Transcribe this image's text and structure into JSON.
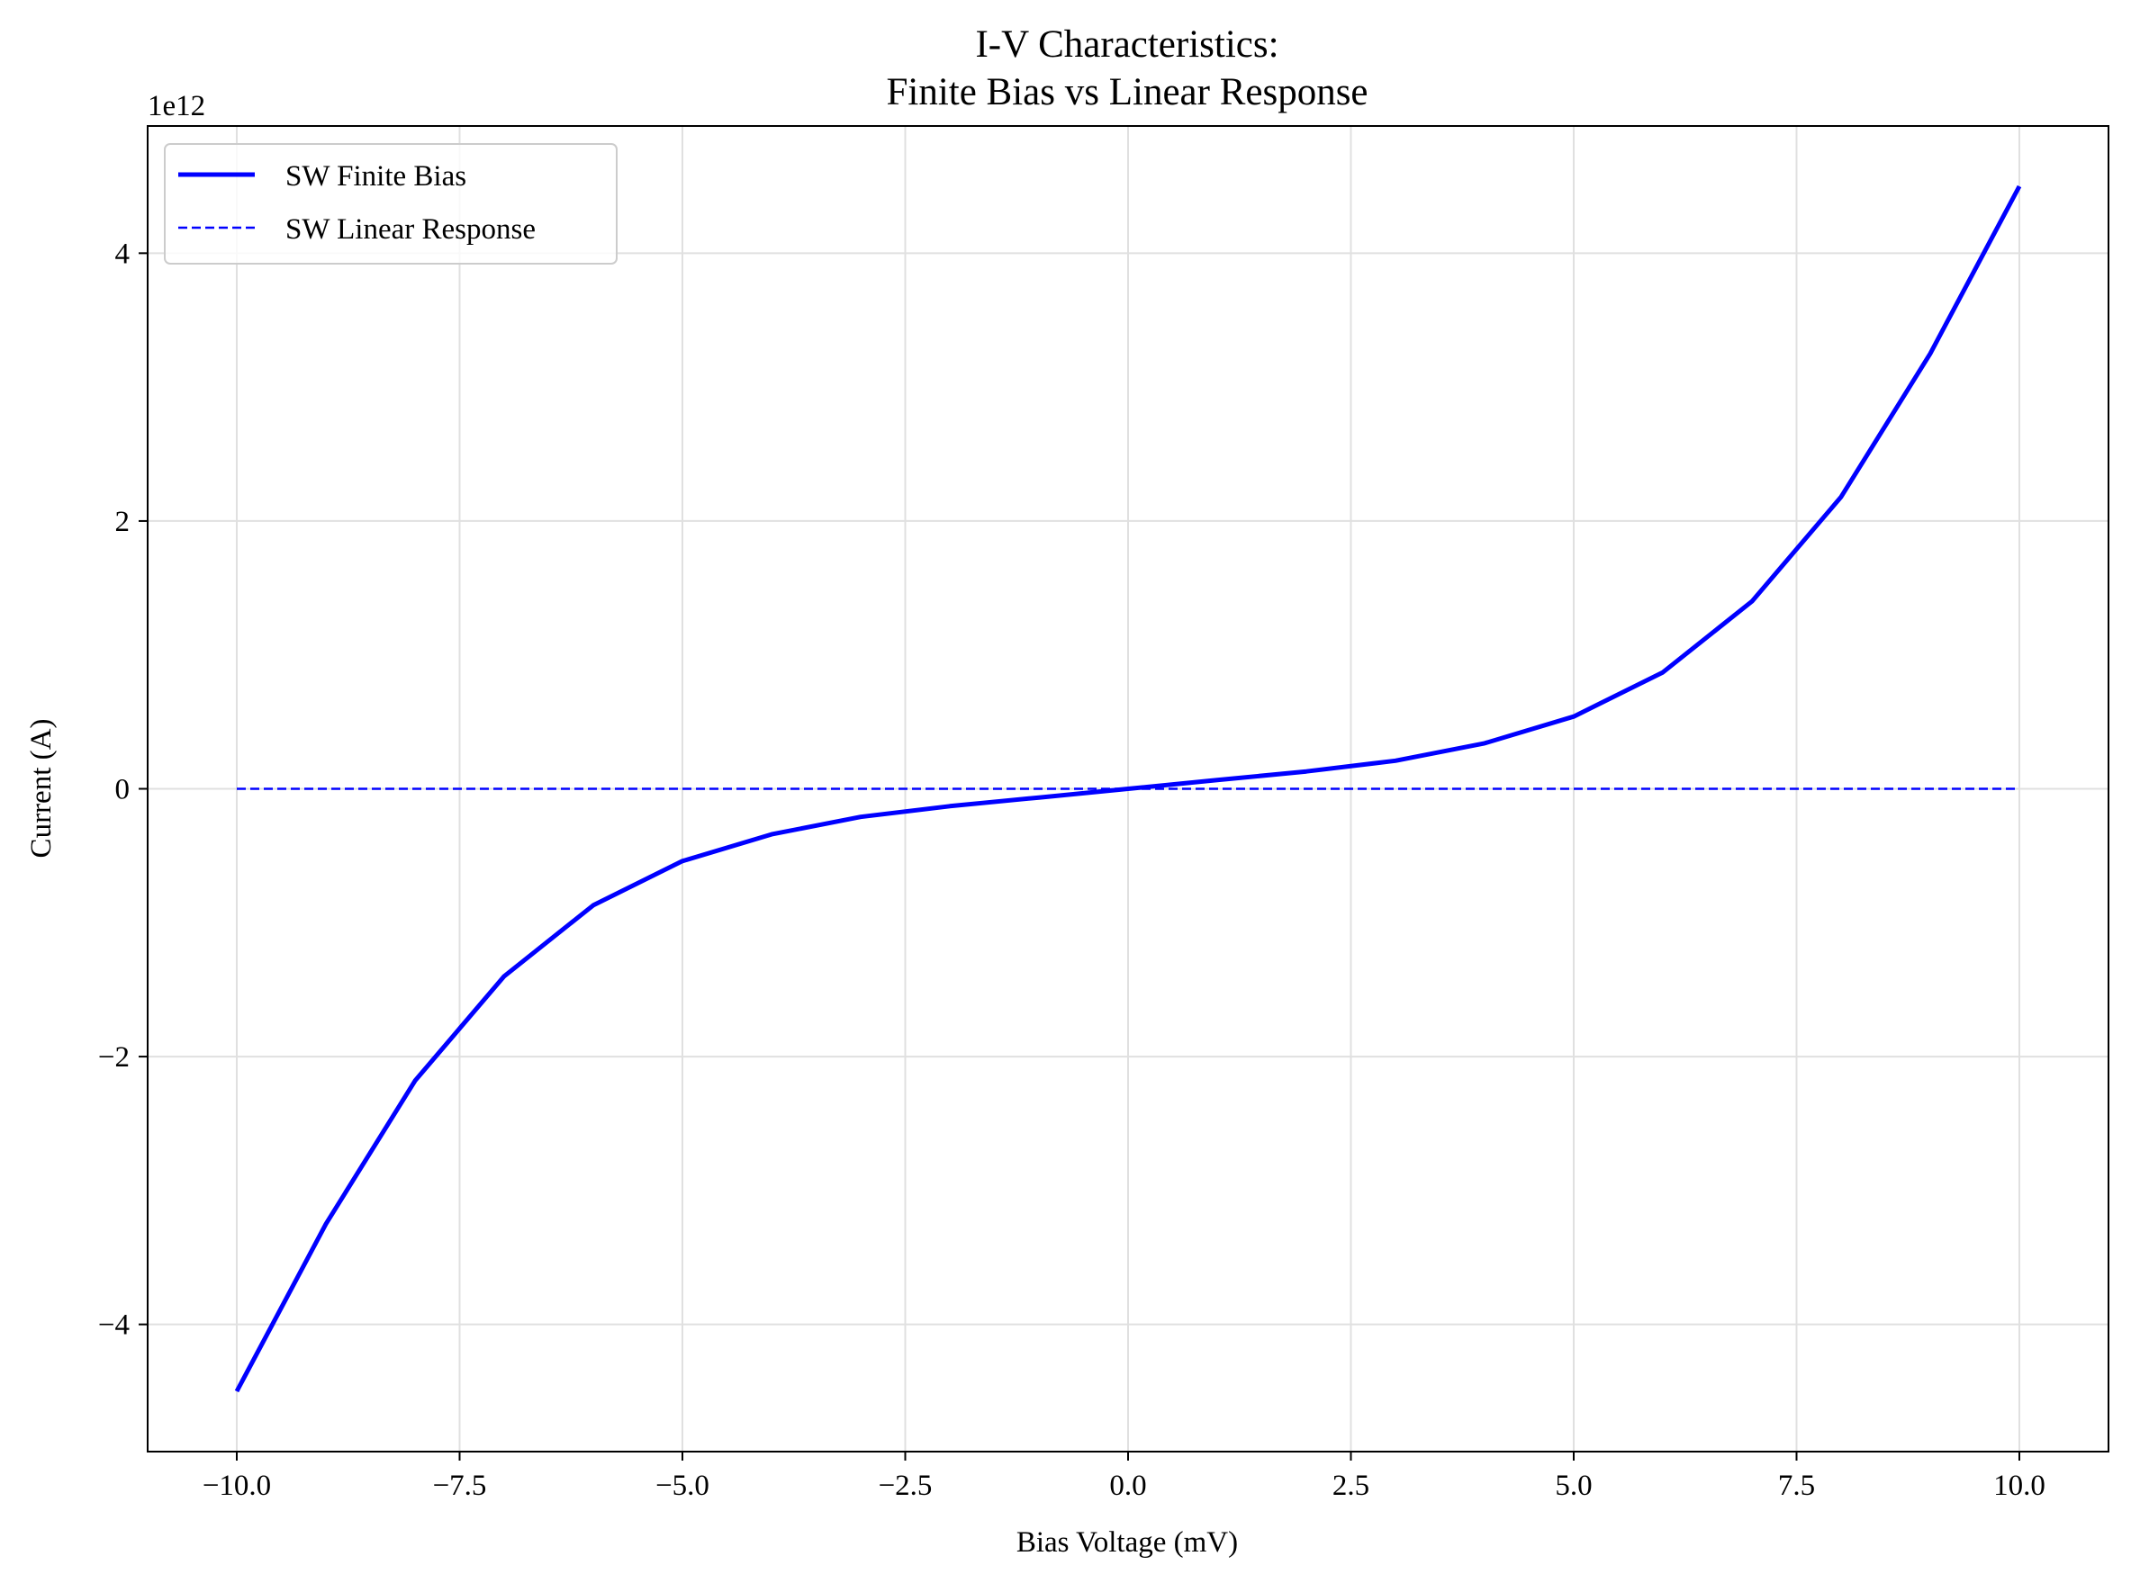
{
  "chart_data": {
    "type": "line",
    "title_line1": "I-V Characteristics:",
    "title_line2": "Finite Bias vs Linear Response",
    "xlabel": "Bias Voltage (mV)",
    "ylabel": "Current (A)",
    "y_offset_label": "1e12",
    "xlim": [
      -11.0,
      11.0
    ],
    "ylim": [
      -4.95,
      4.95
    ],
    "y_scale_note": "y values in units of 1e12 A",
    "grid": true,
    "legend_position": "upper-left",
    "x_ticks": [
      -10.0,
      -7.5,
      -5.0,
      -2.5,
      0.0,
      2.5,
      5.0,
      7.5,
      10.0
    ],
    "x_tick_labels": [
      "−10.0",
      "−7.5",
      "−5.0",
      "−2.5",
      "0.0",
      "2.5",
      "5.0",
      "7.5",
      "10.0"
    ],
    "y_ticks": [
      -4,
      -2,
      0,
      2,
      4
    ],
    "y_tick_labels": [
      "−4",
      "−2",
      "0",
      "2",
      "4"
    ],
    "series": [
      {
        "name": "SW Finite Bias",
        "color": "#0000ff",
        "style": "solid",
        "x": [
          -10,
          -9,
          -8,
          -7,
          -6,
          -5,
          -4,
          -3,
          -2,
          -1,
          0,
          1,
          2,
          3,
          4,
          5,
          6,
          7,
          8,
          9,
          10
        ],
        "y": [
          -4.5,
          -3.25,
          -2.18,
          -1.4,
          -0.87,
          -0.54,
          -0.34,
          -0.21,
          -0.13,
          -0.065,
          0.0,
          0.065,
          0.13,
          0.21,
          0.34,
          0.54,
          0.87,
          1.4,
          2.18,
          3.25,
          4.5
        ]
      },
      {
        "name": "SW Linear Response",
        "color": "#0000ff",
        "style": "dashed",
        "x": [
          -10,
          10
        ],
        "y": [
          0.0,
          0.0
        ]
      }
    ]
  }
}
